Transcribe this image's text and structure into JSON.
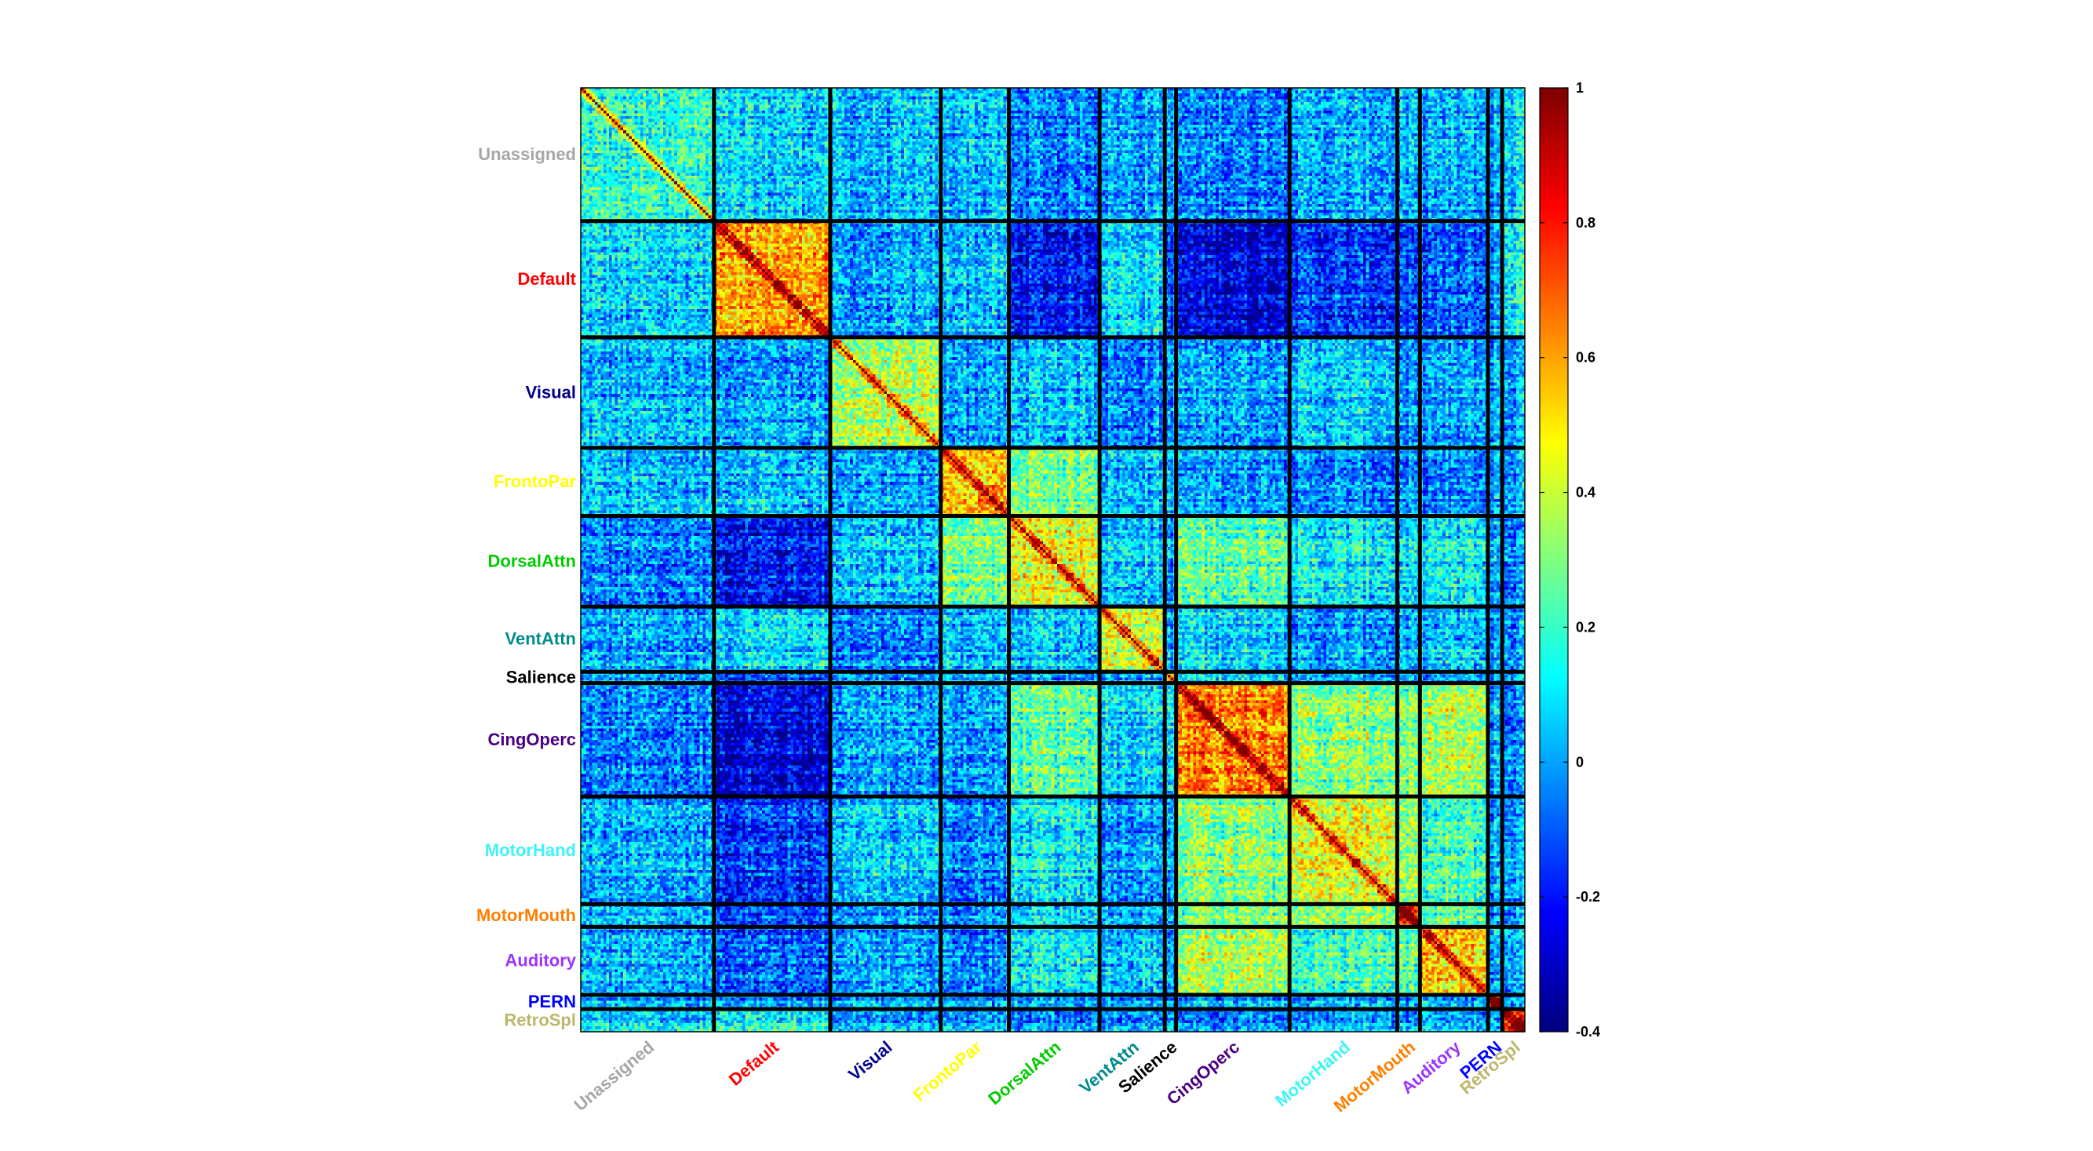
{
  "chart_data": {
    "type": "heatmap",
    "title": "",
    "xlabel": "",
    "ylabel": "",
    "colormap": "jet",
    "clim": [
      -0.4,
      1
    ],
    "colorbar_ticks": [
      1,
      0.8,
      0.6,
      0.4,
      0.2,
      0,
      -0.2,
      -0.4
    ],
    "colorbar_tick_labels": [
      "1",
      "0.8",
      "0.6",
      "0.4",
      "0.2",
      "0",
      "-0.2",
      "-0.4"
    ],
    "n_rois": 333,
    "networks": [
      {
        "name": "Unassigned",
        "color": "#a6a6a6",
        "size": 47
      },
      {
        "name": "Default",
        "color": "#ff0000",
        "size": 41
      },
      {
        "name": "Visual",
        "color": "#00008b",
        "size": 39
      },
      {
        "name": "FrontoPar",
        "color": "#ffff00",
        "size": 24
      },
      {
        "name": "DorsalAttn",
        "color": "#00cc00",
        "size": 32
      },
      {
        "name": "VentAttn",
        "color": "#008b8b",
        "size": 23
      },
      {
        "name": "Salience",
        "color": "#000000",
        "size": 4
      },
      {
        "name": "CingOperc",
        "color": "#4b0082",
        "size": 40
      },
      {
        "name": "MotorHand",
        "color": "#3df5f5",
        "size": 38
      },
      {
        "name": "MotorMouth",
        "color": "#ff7f00",
        "size": 8
      },
      {
        "name": "Auditory",
        "color": "#9933ff",
        "size": 24
      },
      {
        "name": "PERN",
        "color": "#0000ff",
        "size": 5
      },
      {
        "name": "RetroSpl",
        "color": "#bdb76b",
        "size": 8
      }
    ],
    "block_means": [
      [
        0.18,
        0.06,
        0.02,
        0.04,
        -0.05,
        0.0,
        0.0,
        -0.05,
        0.0,
        0.0,
        0.0,
        0.0,
        0.08
      ],
      [
        0.06,
        0.6,
        0.0,
        0.05,
        -0.2,
        0.1,
        -0.1,
        -0.25,
        -0.15,
        -0.15,
        -0.1,
        0.0,
        0.15
      ],
      [
        0.02,
        0.0,
        0.35,
        0.0,
        0.05,
        -0.05,
        0.0,
        0.0,
        0.05,
        -0.05,
        0.0,
        0.0,
        0.0
      ],
      [
        0.04,
        0.05,
        0.0,
        0.55,
        0.3,
        0.05,
        0.05,
        0.0,
        -0.05,
        -0.05,
        -0.05,
        0.0,
        0.0
      ],
      [
        -0.05,
        -0.2,
        0.05,
        0.3,
        0.45,
        0.05,
        0.0,
        0.25,
        0.1,
        0.05,
        0.1,
        0.0,
        -0.05
      ],
      [
        0.0,
        0.1,
        -0.05,
        0.05,
        0.05,
        0.45,
        0.05,
        0.1,
        0.0,
        0.0,
        0.05,
        0.0,
        0.0
      ],
      [
        0.0,
        -0.1,
        0.0,
        0.05,
        0.0,
        0.05,
        0.3,
        0.1,
        0.0,
        0.0,
        0.0,
        0.0,
        0.0
      ],
      [
        -0.05,
        -0.25,
        0.0,
        0.0,
        0.25,
        0.1,
        0.1,
        0.65,
        0.3,
        0.25,
        0.35,
        0.0,
        -0.05
      ],
      [
        0.0,
        -0.15,
        0.05,
        -0.05,
        0.1,
        0.0,
        0.0,
        0.3,
        0.45,
        0.3,
        0.2,
        0.0,
        0.0
      ],
      [
        0.0,
        -0.15,
        -0.05,
        -0.05,
        0.05,
        0.0,
        0.0,
        0.25,
        0.3,
        0.75,
        0.25,
        0.0,
        0.0
      ],
      [
        0.0,
        -0.1,
        0.0,
        -0.05,
        0.1,
        0.05,
        0.0,
        0.35,
        0.2,
        0.25,
        0.5,
        0.0,
        0.0
      ],
      [
        0.0,
        0.0,
        0.0,
        0.0,
        0.0,
        0.0,
        0.0,
        0.0,
        0.0,
        0.0,
        0.0,
        0.8,
        0.0
      ],
      [
        0.08,
        0.15,
        0.0,
        0.0,
        -0.05,
        0.0,
        0.0,
        -0.05,
        0.0,
        0.0,
        0.0,
        0.0,
        0.75
      ]
    ]
  }
}
